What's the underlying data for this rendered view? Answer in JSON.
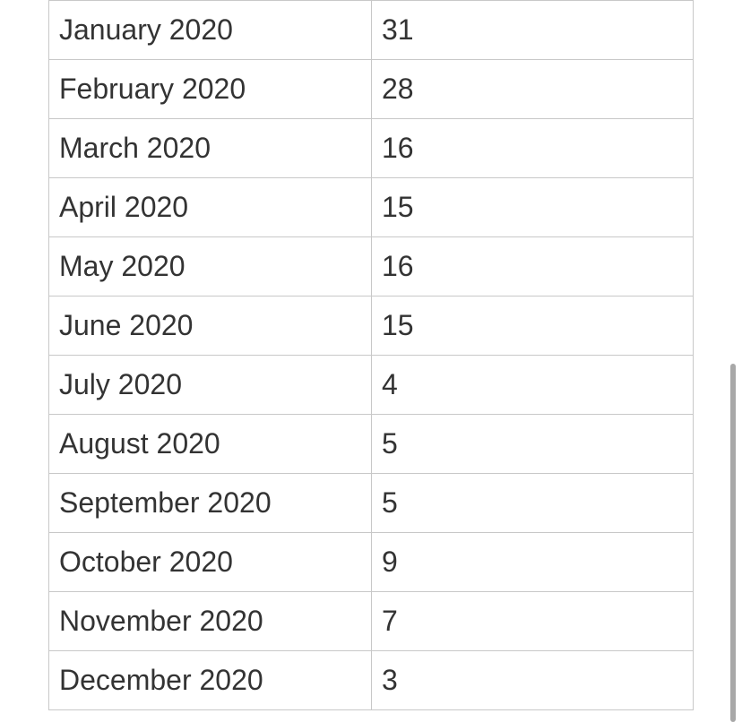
{
  "table": {
    "rows": [
      {
        "month": "January 2020",
        "value": "31"
      },
      {
        "month": "February 2020",
        "value": "28"
      },
      {
        "month": "March 2020",
        "value": "16"
      },
      {
        "month": "April 2020",
        "value": "15"
      },
      {
        "month": "May 2020",
        "value": "16"
      },
      {
        "month": "June 2020",
        "value": "15"
      },
      {
        "month": "July 2020",
        "value": "4"
      },
      {
        "month": "August 2020",
        "value": "5"
      },
      {
        "month": "September 2020",
        "value": "5"
      },
      {
        "month": "October 2020",
        "value": "9"
      },
      {
        "month": "November 2020",
        "value": "7"
      },
      {
        "month": "December 2020",
        "value": "3"
      }
    ]
  }
}
